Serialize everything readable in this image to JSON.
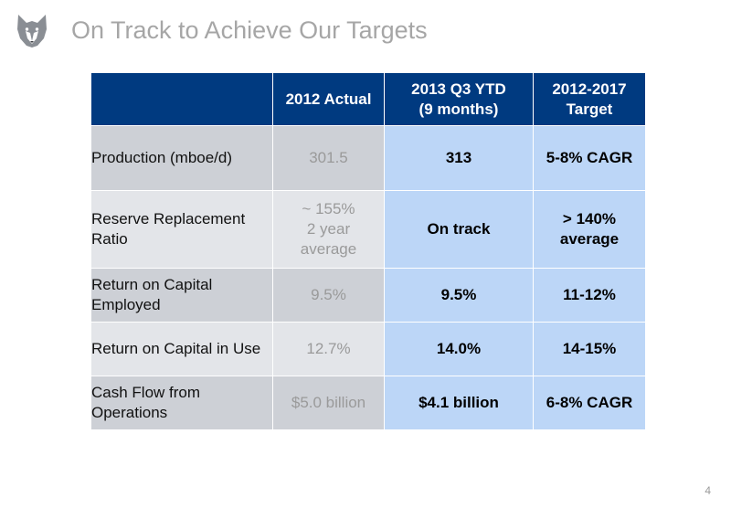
{
  "slide": {
    "title": "On Track to Achieve Our Targets",
    "page_number": "4",
    "logo": "husky-logo-icon"
  },
  "table": {
    "headers": [
      "",
      "2012 Actual",
      "2013 Q3 YTD\n(9 months)",
      "2012-2017\nTarget"
    ],
    "rows": [
      {
        "label": "Production (mboe/d)",
        "actual": "301.5",
        "ytd": "313",
        "target": "5-8% CAGR"
      },
      {
        "label": "Reserve Replacement Ratio",
        "actual": "~ 155%\n2 year\naverage",
        "ytd": "On track",
        "target": "> 140%\naverage"
      },
      {
        "label": "Return on Capital Employed",
        "actual": "9.5%",
        "ytd": "9.5%",
        "target": "11-12%"
      },
      {
        "label": "Return on Capital in Use",
        "actual": "12.7%",
        "ytd": "14.0%",
        "target": "14-15%"
      },
      {
        "label": "Cash Flow from Operations",
        "actual": "$5.0 billion",
        "ytd": "$4.1 billion",
        "target": "6-8% CAGR"
      }
    ]
  },
  "colors": {
    "header_bg": "#003a80",
    "label_odd": "#cdd0d6",
    "label_even": "#e3e5e9",
    "highlight": "#bcd6f7",
    "title": "#a6a6a6"
  }
}
